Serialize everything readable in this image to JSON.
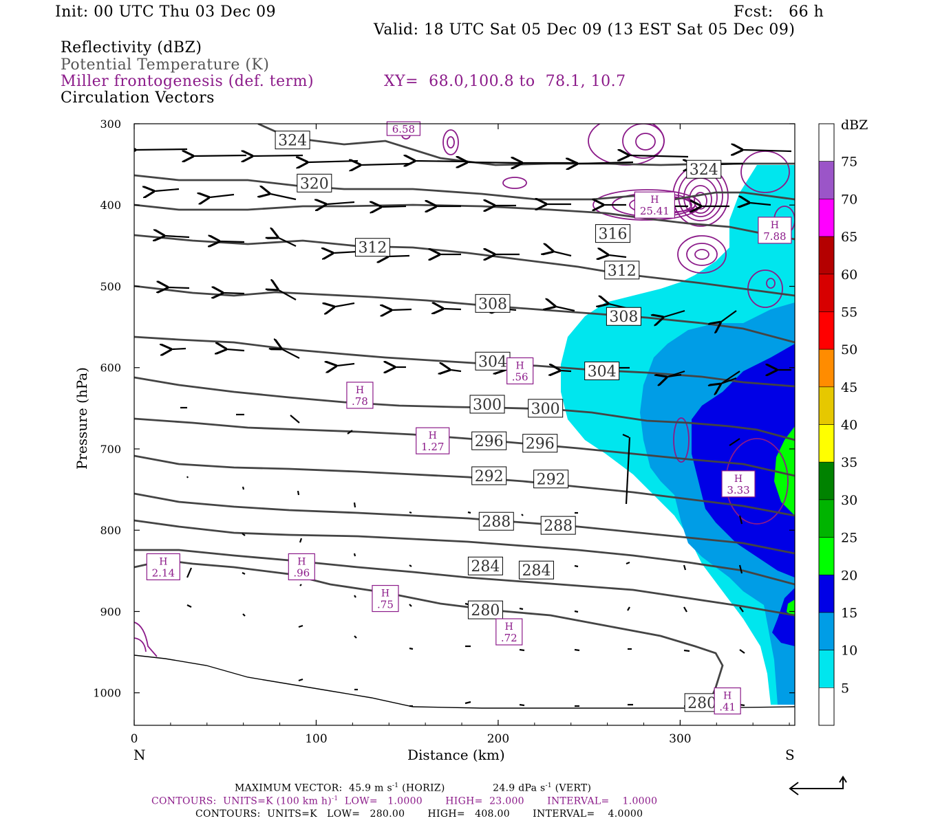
{
  "header": {
    "init": "Init: 00 UTC Thu 03 Dec 09",
    "fcst": "Fcst:   66 h",
    "valid": "Valid: 18 UTC Sat 05 Dec 09 (13 EST Sat 05 Dec 09)"
  },
  "fields": {
    "reflectivity": "Reflectivity (dBZ)",
    "theta": "Potential Temperature (K)",
    "frontogenesis": "Miller frontogenesis (def. term)",
    "xy": "XY=  68.0,100.8 to  78.1, 10.7",
    "circulation": "Circulation Vectors"
  },
  "colors": {
    "theta_line": "#444444",
    "frontogenesis": "#8b1a89",
    "dbz": [
      "#ffffff",
      "#00e6ee",
      "#009de6",
      "#0000e6",
      "#00ff00",
      "#00b400",
      "#008200",
      "#ffff00",
      "#e6c800",
      "#ff8c00",
      "#ff0000",
      "#d70000",
      "#b40000",
      "#ff00ff",
      "#9b55c8",
      "#ffffff"
    ]
  },
  "chart_data": {
    "type": "cross-section",
    "ylabel": "Pressure (hPa)",
    "xlabel": "Distance (km)",
    "x_left_label": "N",
    "x_right_label": "S",
    "xlim": [
      0,
      363
    ],
    "ylim": [
      1040,
      300
    ],
    "x_ticks": [
      "0",
      "100",
      "200",
      "300"
    ],
    "y_ticks": [
      "300",
      "400",
      "500",
      "600",
      "700",
      "800",
      "900",
      "1000"
    ],
    "colorbar": {
      "unit": "dBZ",
      "levels": [
        "75",
        "70",
        "65",
        "60",
        "55",
        "50",
        "45",
        "40",
        "35",
        "30",
        "25",
        "20",
        "15",
        "10",
        "5"
      ]
    },
    "theta_labels": [
      {
        "text": "324",
        "x": 87,
        "p": 320
      },
      {
        "text": "324",
        "x": 313,
        "p": 356
      },
      {
        "text": "320",
        "x": 99,
        "p": 373
      },
      {
        "text": "316",
        "x": 263,
        "p": 435
      },
      {
        "text": "312",
        "x": 131,
        "p": 452
      },
      {
        "text": "312",
        "x": 268,
        "p": 480
      },
      {
        "text": "308",
        "x": 197,
        "p": 521
      },
      {
        "text": "308",
        "x": 269,
        "p": 537
      },
      {
        "text": "304",
        "x": 197,
        "p": 592
      },
      {
        "text": "304",
        "x": 257,
        "p": 604
      },
      {
        "text": "300",
        "x": 194,
        "p": 645
      },
      {
        "text": "300",
        "x": 226,
        "p": 650
      },
      {
        "text": "296",
        "x": 195,
        "p": 690
      },
      {
        "text": "296",
        "x": 223,
        "p": 693
      },
      {
        "text": "292",
        "x": 195,
        "p": 733
      },
      {
        "text": "292",
        "x": 229,
        "p": 737
      },
      {
        "text": "288",
        "x": 199,
        "p": 789
      },
      {
        "text": "288",
        "x": 233,
        "p": 794
      },
      {
        "text": "284",
        "x": 193,
        "p": 844
      },
      {
        "text": "284",
        "x": 221,
        "p": 849
      },
      {
        "text": "280",
        "x": 193,
        "p": 898
      },
      {
        "text": "280",
        "x": 312,
        "p": 1012
      }
    ],
    "fronto_labels": [
      {
        "text": "6.58",
        "x": 148,
        "p": 306,
        "h": false
      },
      {
        "text": "25.41",
        "x": 286,
        "p": 400,
        "h": true
      },
      {
        "text": "7.88",
        "x": 352,
        "p": 431,
        "h": true
      },
      {
        "text": ".56",
        "x": 212,
        "p": 604,
        "h": true
      },
      {
        "text": ".78",
        "x": 124,
        "p": 634,
        "h": true
      },
      {
        "text": "1.27",
        "x": 164,
        "p": 690,
        "h": true
      },
      {
        "text": "3.33",
        "x": 332,
        "p": 743,
        "h": true
      },
      {
        "text": "2.14",
        "x": 16,
        "p": 845,
        "h": true
      },
      {
        "text": ".96",
        "x": 92,
        "p": 845,
        "h": true
      },
      {
        "text": ".75",
        "x": 138,
        "p": 884,
        "h": true
      },
      {
        "text": ".72",
        "x": 206,
        "p": 925,
        "h": true
      },
      {
        "text": ".41",
        "x": 326,
        "p": 1010,
        "h": true
      }
    ]
  },
  "footer": {
    "max_vector_label": "MAXIMUM VECTOR:",
    "max_horiz": "45.9 m s",
    "horiz_tag": "(HORIZ)",
    "max_vert": "24.9 dPa s",
    "vert_tag": "(VERT)",
    "sup": "-1",
    "contours1": "CONTOURS:  UNITS=K (100 km h)",
    "contours1_rest": "  LOW=   1.0000       HIGH=  23.000       INTERVAL=    1.0000",
    "contours2": "CONTOURS:  UNITS=K   LOW=   280.00       HIGH=   408.00       INTERVAL=    4.0000"
  }
}
